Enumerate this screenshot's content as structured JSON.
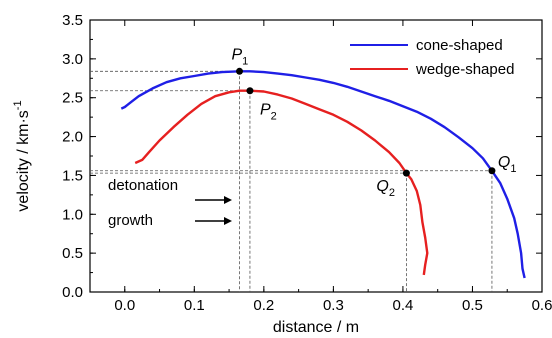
{
  "chart_data": {
    "type": "line",
    "xlabel": "distance / m",
    "ylabel": "velocity / km·s",
    "ylabel_sup": "-1",
    "xlim": [
      -0.05,
      0.6
    ],
    "ylim": [
      0.0,
      3.5
    ],
    "xticks": [
      0.0,
      0.1,
      0.2,
      0.3,
      0.4,
      0.5,
      0.6
    ],
    "yticks": [
      0.0,
      0.5,
      1.0,
      1.5,
      2.0,
      2.5,
      3.0,
      3.5
    ],
    "xtick_labels": [
      "0.0",
      "0.1",
      "0.2",
      "0.3",
      "0.4",
      "0.5",
      "0.6"
    ],
    "ytick_labels": [
      "0.0",
      "0.5",
      "1.0",
      "1.5",
      "2.0",
      "2.5",
      "3.0",
      "3.5"
    ],
    "legend_position": "top-right",
    "grid": false,
    "series": [
      {
        "name": "cone-shaped",
        "color": "#1f1fe6",
        "points": [
          [
            -0.005,
            2.36
          ],
          [
            0.0,
            2.38
          ],
          [
            0.01,
            2.45
          ],
          [
            0.02,
            2.52
          ],
          [
            0.04,
            2.62
          ],
          [
            0.06,
            2.7
          ],
          [
            0.08,
            2.75
          ],
          [
            0.1,
            2.78
          ],
          [
            0.12,
            2.81
          ],
          [
            0.14,
            2.83
          ],
          [
            0.165,
            2.84
          ],
          [
            0.18,
            2.84
          ],
          [
            0.2,
            2.83
          ],
          [
            0.22,
            2.81
          ],
          [
            0.24,
            2.79
          ],
          [
            0.26,
            2.76
          ],
          [
            0.28,
            2.73
          ],
          [
            0.3,
            2.69
          ],
          [
            0.32,
            2.64
          ],
          [
            0.34,
            2.58
          ],
          [
            0.36,
            2.52
          ],
          [
            0.38,
            2.46
          ],
          [
            0.4,
            2.39
          ],
          [
            0.42,
            2.32
          ],
          [
            0.44,
            2.23
          ],
          [
            0.46,
            2.12
          ],
          [
            0.48,
            1.99
          ],
          [
            0.5,
            1.85
          ],
          [
            0.515,
            1.72
          ],
          [
            0.528,
            1.56
          ],
          [
            0.54,
            1.4
          ],
          [
            0.55,
            1.2
          ],
          [
            0.56,
            0.95
          ],
          [
            0.565,
            0.75
          ],
          [
            0.57,
            0.5
          ],
          [
            0.572,
            0.3
          ],
          [
            0.575,
            0.18
          ]
        ]
      },
      {
        "name": "wedge-shaped",
        "color": "#e62020",
        "points": [
          [
            0.015,
            1.66
          ],
          [
            0.025,
            1.7
          ],
          [
            0.035,
            1.8
          ],
          [
            0.05,
            1.95
          ],
          [
            0.07,
            2.12
          ],
          [
            0.09,
            2.28
          ],
          [
            0.11,
            2.42
          ],
          [
            0.13,
            2.52
          ],
          [
            0.15,
            2.57
          ],
          [
            0.165,
            2.59
          ],
          [
            0.18,
            2.59
          ],
          [
            0.2,
            2.58
          ],
          [
            0.22,
            2.54
          ],
          [
            0.24,
            2.49
          ],
          [
            0.26,
            2.42
          ],
          [
            0.28,
            2.35
          ],
          [
            0.3,
            2.28
          ],
          [
            0.32,
            2.19
          ],
          [
            0.34,
            2.08
          ],
          [
            0.36,
            1.95
          ],
          [
            0.38,
            1.8
          ],
          [
            0.395,
            1.66
          ],
          [
            0.405,
            1.53
          ],
          [
            0.412,
            1.45
          ],
          [
            0.42,
            1.3
          ],
          [
            0.425,
            1.12
          ],
          [
            0.428,
            0.9
          ],
          [
            0.432,
            0.7
          ],
          [
            0.435,
            0.5
          ],
          [
            0.432,
            0.35
          ],
          [
            0.43,
            0.22
          ]
        ]
      }
    ],
    "markers": [
      {
        "label": "P",
        "sub": "1",
        "x": 0.165,
        "y": 2.84
      },
      {
        "label": "P",
        "sub": "2",
        "x": 0.18,
        "y": 2.59
      },
      {
        "label": "Q",
        "sub": "1",
        "x": 0.528,
        "y": 1.56
      },
      {
        "label": "Q",
        "sub": "2",
        "x": 0.405,
        "y": 1.53
      }
    ],
    "annotations": [
      "detonation",
      "growth"
    ]
  }
}
